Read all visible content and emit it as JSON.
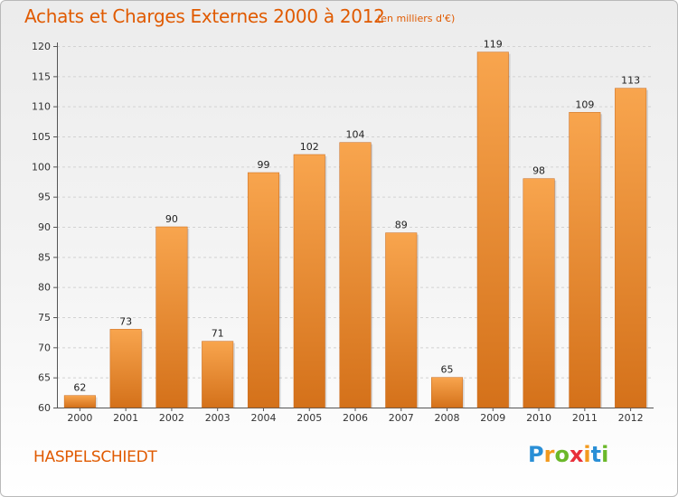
{
  "header": {
    "title": "Achats et Charges Externes 2000 à 2012",
    "unit": "(en milliers d'€)"
  },
  "footer": {
    "commune": "HASPELSCHIEDT",
    "logo_letters": [
      "P",
      "r",
      "o",
      "x",
      "i",
      "t",
      "i"
    ],
    "logo_colors": [
      "#2a8fd6",
      "#f39a1e",
      "#6bb82a",
      "#e8303a",
      "#f39a1e",
      "#2a8fd6",
      "#6bb82a"
    ]
  },
  "chart_data": {
    "type": "bar",
    "categories": [
      "2000",
      "2001",
      "2002",
      "2003",
      "2004",
      "2005",
      "2006",
      "2007",
      "2008",
      "2009",
      "2010",
      "2011",
      "2012"
    ],
    "values": [
      62,
      73,
      90,
      71,
      99,
      102,
      104,
      89,
      65,
      119,
      98,
      109,
      113
    ],
    "title": "Achats et Charges Externes 2000 à 2012",
    "ylim": [
      60,
      120
    ],
    "yticks": [
      60,
      65,
      70,
      75,
      80,
      85,
      90,
      95,
      100,
      105,
      110,
      115,
      120
    ],
    "grid": true,
    "bar_color_top": "#f8a54e",
    "bar_color_bottom": "#d4711a"
  }
}
